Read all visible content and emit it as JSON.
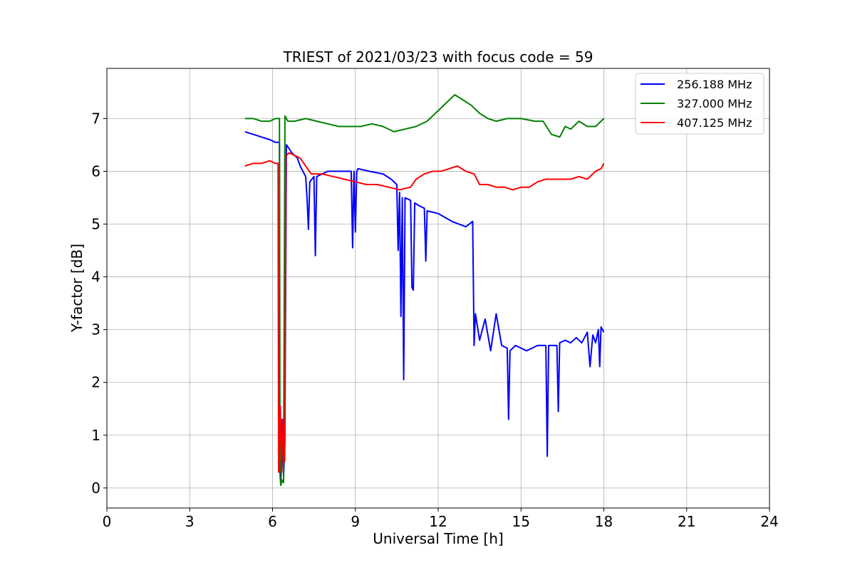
{
  "chart_data": {
    "type": "line",
    "title": "TRIEST of 2021/03/23 with focus code = 59",
    "xlabel": "Universal Time [h]",
    "ylabel": "Y-factor [dB]",
    "xlim": [
      0,
      24
    ],
    "ylim": [
      -0.38,
      7.95
    ],
    "xticks": [
      0,
      3,
      6,
      9,
      12,
      15,
      18,
      21,
      24
    ],
    "yticks": [
      0,
      1,
      2,
      3,
      4,
      5,
      6,
      7
    ],
    "grid": true,
    "legend_position": "top-right",
    "series": [
      {
        "name": "256.188 MHz",
        "color": "#0000ff",
        "x": [
          5.0,
          5.3,
          5.6,
          5.9,
          6.1,
          6.25,
          6.26,
          6.3,
          6.35,
          6.4,
          6.45,
          6.5,
          6.51,
          6.7,
          6.9,
          7.0,
          7.2,
          7.25,
          7.3,
          7.35,
          7.5,
          7.55,
          7.6,
          7.8,
          8.0,
          8.5,
          8.85,
          8.9,
          8.95,
          9.0,
          9.05,
          9.1,
          9.5,
          10.0,
          10.3,
          10.5,
          10.55,
          10.6,
          10.65,
          10.7,
          10.75,
          10.8,
          11.0,
          11.05,
          11.1,
          11.15,
          11.3,
          11.5,
          11.55,
          11.6,
          12.0,
          12.5,
          13.0,
          13.25,
          13.3,
          13.35,
          13.5,
          13.7,
          13.9,
          14.1,
          14.3,
          14.5,
          14.55,
          14.6,
          14.8,
          15.0,
          15.2,
          15.4,
          15.6,
          15.9,
          15.95,
          16.0,
          16.3,
          16.35,
          16.4,
          16.6,
          16.8,
          17.0,
          17.2,
          17.4,
          17.5,
          17.6,
          17.7,
          17.8,
          17.85,
          17.9,
          18.0
        ],
        "y": [
          6.75,
          6.7,
          6.65,
          6.6,
          6.55,
          6.55,
          0.4,
          0.1,
          1.3,
          0.2,
          0.9,
          6.5,
          6.5,
          6.35,
          6.25,
          6.1,
          5.9,
          5.5,
          4.9,
          5.8,
          5.9,
          4.4,
          5.9,
          5.95,
          6.0,
          6.0,
          6.0,
          4.55,
          6.0,
          4.85,
          6.0,
          6.05,
          6.0,
          5.95,
          5.85,
          5.75,
          4.5,
          5.6,
          3.25,
          5.5,
          2.05,
          5.5,
          5.45,
          3.8,
          3.75,
          5.4,
          5.35,
          5.3,
          4.3,
          5.25,
          5.2,
          5.05,
          4.95,
          5.05,
          2.7,
          3.3,
          2.8,
          3.2,
          2.6,
          3.3,
          2.7,
          2.65,
          1.3,
          2.6,
          2.7,
          2.65,
          2.6,
          2.65,
          2.7,
          2.7,
          0.6,
          2.7,
          2.7,
          1.45,
          2.75,
          2.8,
          2.75,
          2.85,
          2.75,
          2.95,
          2.3,
          2.9,
          2.75,
          3.0,
          2.3,
          3.05,
          2.95
        ]
      },
      {
        "name": "327.000 MHz",
        "color": "#008000",
        "x": [
          5.0,
          5.3,
          5.6,
          5.9,
          6.1,
          6.25,
          6.27,
          6.3,
          6.35,
          6.4,
          6.45,
          6.5,
          6.55,
          6.8,
          7.2,
          7.6,
          8.0,
          8.4,
          8.8,
          9.2,
          9.6,
          10.0,
          10.4,
          10.8,
          11.2,
          11.6,
          12.0,
          12.3,
          12.6,
          12.9,
          13.2,
          13.5,
          13.8,
          14.1,
          14.5,
          15.0,
          15.5,
          15.8,
          16.1,
          16.4,
          16.6,
          16.8,
          17.1,
          17.4,
          17.7,
          18.0
        ],
        "y": [
          7.0,
          7.0,
          6.95,
          6.95,
          7.0,
          7.0,
          0.25,
          0.05,
          0.15,
          0.1,
          7.05,
          7.0,
          6.95,
          6.95,
          7.0,
          6.95,
          6.9,
          6.85,
          6.85,
          6.85,
          6.9,
          6.85,
          6.75,
          6.8,
          6.85,
          6.95,
          7.15,
          7.3,
          7.45,
          7.35,
          7.25,
          7.1,
          7.0,
          6.95,
          7.0,
          7.0,
          6.95,
          6.95,
          6.7,
          6.65,
          6.85,
          6.8,
          6.95,
          6.85,
          6.85,
          7.0
        ]
      },
      {
        "name": "407.125 MHz",
        "color": "#ff0000",
        "x": [
          5.0,
          5.3,
          5.6,
          5.9,
          6.1,
          6.2,
          6.22,
          6.28,
          6.33,
          6.38,
          6.44,
          6.48,
          6.5,
          6.6,
          6.8,
          7.0,
          7.2,
          7.4,
          7.8,
          8.2,
          8.6,
          9.0,
          9.4,
          9.8,
          10.2,
          10.6,
          11.0,
          11.2,
          11.5,
          11.8,
          12.1,
          12.4,
          12.7,
          13.0,
          13.3,
          13.5,
          13.8,
          14.1,
          14.4,
          14.7,
          15.0,
          15.3,
          15.6,
          15.9,
          16.2,
          16.5,
          16.8,
          17.1,
          17.4,
          17.7,
          17.9,
          18.0
        ],
        "y": [
          6.1,
          6.15,
          6.15,
          6.2,
          6.15,
          6.15,
          0.3,
          1.55,
          0.3,
          1.3,
          0.5,
          6.3,
          6.3,
          6.35,
          6.3,
          6.25,
          6.1,
          5.95,
          5.95,
          5.9,
          5.85,
          5.8,
          5.75,
          5.75,
          5.7,
          5.65,
          5.7,
          5.85,
          5.95,
          6.0,
          6.0,
          6.05,
          6.1,
          6.0,
          5.95,
          5.75,
          5.75,
          5.7,
          5.7,
          5.65,
          5.7,
          5.7,
          5.8,
          5.85,
          5.85,
          5.85,
          5.85,
          5.9,
          5.85,
          6.0,
          6.05,
          6.15
        ]
      }
    ]
  }
}
